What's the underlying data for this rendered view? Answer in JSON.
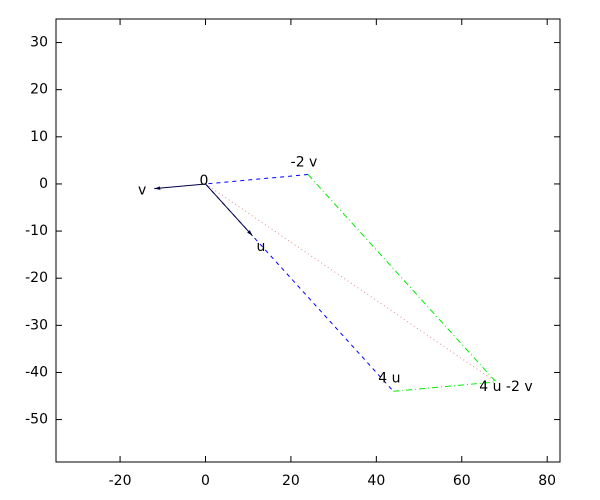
{
  "chart_data": {
    "type": "vector",
    "xlim": [
      -35,
      83
    ],
    "ylim": [
      -59,
      35
    ],
    "xticks": [
      -20,
      0,
      20,
      40,
      60,
      80
    ],
    "yticks": [
      30,
      20,
      10,
      0,
      -10,
      -20,
      -30,
      -40,
      -50
    ],
    "points": [
      {
        "label": "0",
        "x": 0,
        "y": 0
      },
      {
        "label": "v",
        "x": -12,
        "y": -1
      },
      {
        "label": "u",
        "x": 11,
        "y": -11
      },
      {
        "label": "-2 v",
        "x": 24,
        "y": 2
      },
      {
        "label": "4 u",
        "x": 44,
        "y": -44
      },
      {
        "label": "4 u -2 v",
        "x": 68,
        "y": -42
      }
    ],
    "segments": [
      {
        "x": [
          24,
          0,
          44
        ],
        "y": [
          2,
          0,
          -44
        ],
        "color": "#0000ff",
        "dash": "4 4",
        "arrow": false
      },
      {
        "x": [
          24,
          68,
          44
        ],
        "y": [
          2,
          -42,
          -44
        ],
        "color": "#00ee00",
        "dash": "6 3 1 3",
        "arrow": false
      },
      {
        "x": [
          0,
          68
        ],
        "y": [
          0,
          -42
        ],
        "color": "#e09090",
        "dash": "1 3",
        "arrow": false
      },
      {
        "x": [
          0,
          11
        ],
        "y": [
          0,
          -11
        ],
        "color": "#000044",
        "dash": "none",
        "arrow": true
      },
      {
        "x": [
          0,
          -12
        ],
        "y": [
          0,
          -1
        ],
        "color": "#000044",
        "dash": "none",
        "arrow": true
      }
    ]
  }
}
